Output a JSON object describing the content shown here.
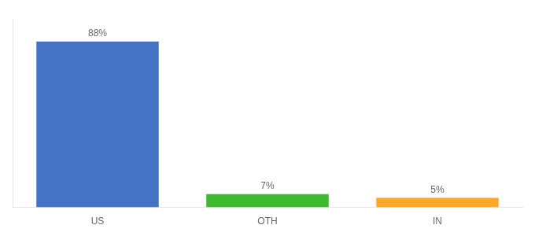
{
  "chart_data": {
    "type": "bar",
    "categories": [
      "US",
      "OTH",
      "IN"
    ],
    "values": [
      88,
      7,
      5
    ],
    "value_labels": [
      "88%",
      "7%",
      "5%"
    ],
    "colors": [
      "#4472c4",
      "#3dba2e",
      "#ffa726"
    ],
    "ylim": [
      0,
      100
    ],
    "grid": false,
    "data_labels": true,
    "tick_labels": "x"
  }
}
